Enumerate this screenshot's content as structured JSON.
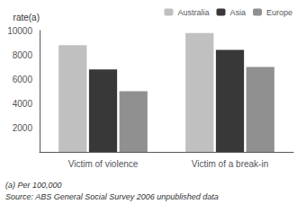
{
  "chart_data": {
    "type": "bar",
    "categories": [
      "Victim of violence",
      "Victim of a break-in"
    ],
    "series": [
      {
        "name": "Australia",
        "color": "#c0c0c0",
        "values": [
          8800,
          9800
        ]
      },
      {
        "name": "Asia",
        "color": "#383838",
        "values": [
          6800,
          8400
        ]
      },
      {
        "name": "Europe",
        "color": "#909090",
        "values": [
          5000,
          7000
        ]
      }
    ],
    "ylabel": "rate(a)",
    "ylim": [
      0,
      10000
    ],
    "yticks": [
      {
        "value": 0,
        "label": ""
      },
      2000,
      4000,
      6000,
      8000,
      10000
    ],
    "grid": false,
    "legend": "upper right",
    "annotations": [
      "(a) Per 100,000",
      "Source: ABS General Social Survey 2006 unpublished data"
    ]
  }
}
